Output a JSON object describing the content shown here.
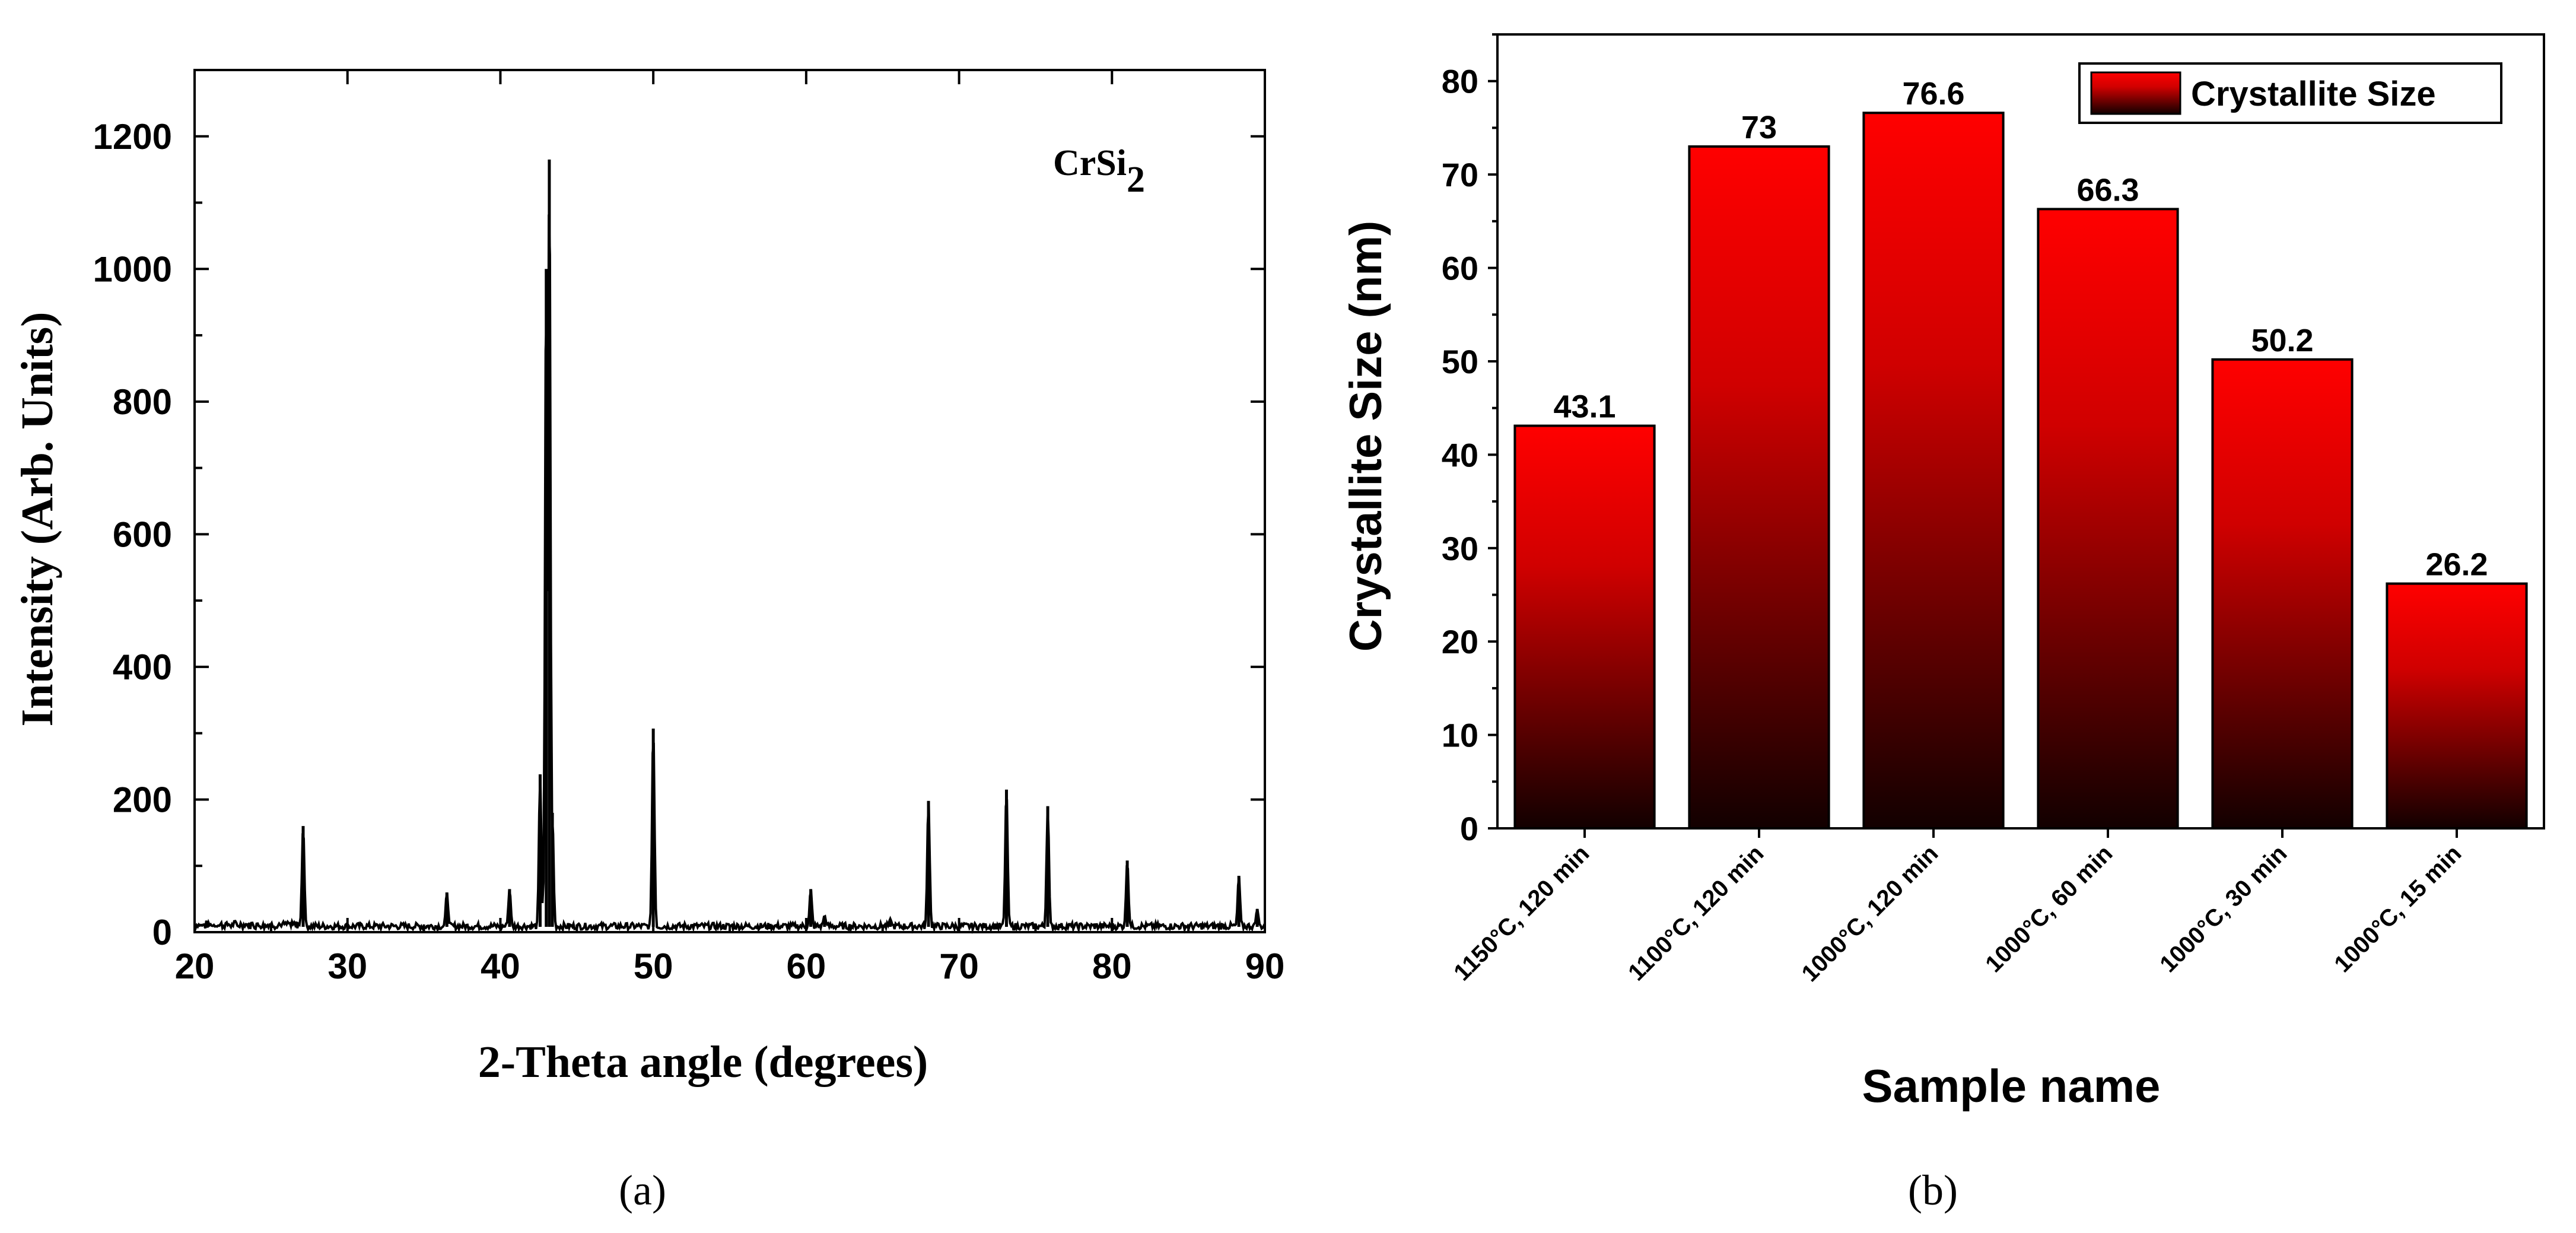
{
  "chart_data": [
    {
      "type": "line",
      "panel_label": "(a)",
      "xlabel": "2-Theta angle (degrees)",
      "ylabel": "Intensity (Arb. Units)",
      "xlim": [
        20,
        90
      ],
      "ylim": [
        0,
        1300
      ],
      "xticks": [
        20,
        30,
        40,
        50,
        60,
        70,
        80,
        90
      ],
      "yticks": [
        0,
        200,
        400,
        600,
        800,
        1000,
        1200
      ],
      "annotation": {
        "base": "CrSi",
        "subscript": "2"
      },
      "grid": false,
      "baseline": 8,
      "peaks": [
        {
          "x": 27.1,
          "y": 160
        },
        {
          "x": 36.5,
          "y": 60
        },
        {
          "x": 40.6,
          "y": 65
        },
        {
          "x": 42.6,
          "y": 238
        },
        {
          "x": 43.0,
          "y": 1000
        },
        {
          "x": 43.2,
          "y": 1165
        },
        {
          "x": 43.4,
          "y": 180
        },
        {
          "x": 50.0,
          "y": 307
        },
        {
          "x": 60.3,
          "y": 65
        },
        {
          "x": 61.2,
          "y": 25
        },
        {
          "x": 65.5,
          "y": 20
        },
        {
          "x": 68.0,
          "y": 198
        },
        {
          "x": 73.1,
          "y": 215
        },
        {
          "x": 75.8,
          "y": 190
        },
        {
          "x": 81.0,
          "y": 108
        },
        {
          "x": 88.3,
          "y": 85
        },
        {
          "x": 89.5,
          "y": 35
        }
      ]
    },
    {
      "type": "bar",
      "panel_label": "(b)",
      "xlabel": "Sample name",
      "ylabel": "Crystallite Size (nm)",
      "ylim": [
        0,
        85
      ],
      "yticks": [
        0,
        10,
        20,
        30,
        40,
        50,
        60,
        70,
        80
      ],
      "categories": [
        "1150°C, 120 min",
        "1100°C, 120 min",
        "1000°C, 120 min",
        "1000°C, 60 min",
        "1000°C, 30 min",
        "1000°C, 15 min"
      ],
      "values": [
        43.1,
        73,
        76.6,
        66.3,
        50.2,
        26.2
      ],
      "value_labels": [
        "43.1",
        "73",
        "76.6",
        "66.3",
        "50.2",
        "26.2"
      ],
      "legend": {
        "label": "Crystallite Size",
        "position": "top-right"
      },
      "bar_gradient": {
        "top": "#ff0000",
        "bottom": "#120000"
      },
      "grid": false
    }
  ]
}
